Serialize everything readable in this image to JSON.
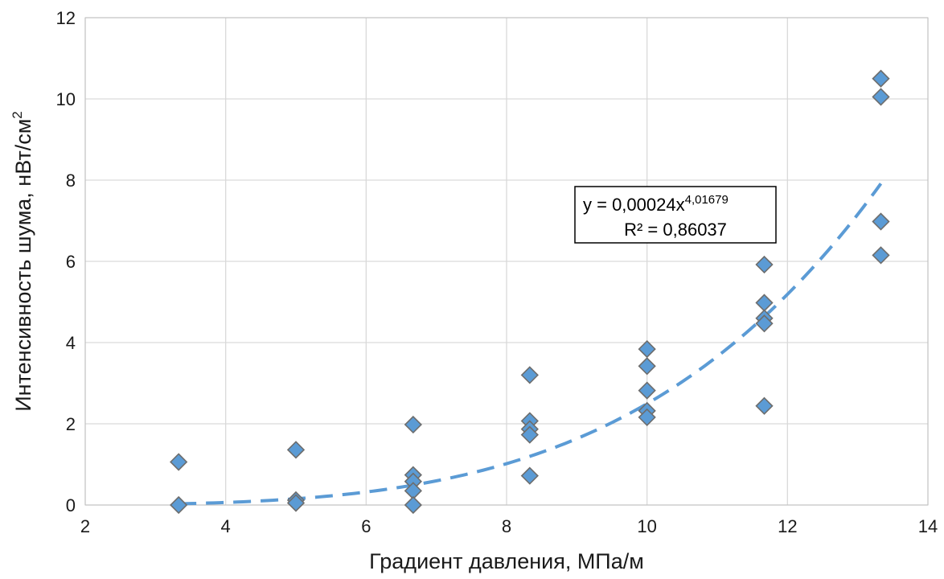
{
  "chart_data": {
    "type": "scatter",
    "xlabel": "Градиент давления, МПа/м",
    "ylabel": "Интенсивность шума, нВт/см",
    "ylabel_sup": "2",
    "xlim": [
      2,
      14
    ],
    "ylim": [
      0,
      12
    ],
    "xticks": [
      "2",
      "4",
      "6",
      "8",
      "10",
      "12",
      "14"
    ],
    "yticks": [
      "0",
      "2",
      "4",
      "6",
      "8",
      "10",
      "12"
    ],
    "grid": true,
    "marker": "diamond",
    "marker_color": "#5b9bd5",
    "series": [
      {
        "points": [
          [
            3.33,
            1.06
          ],
          [
            3.33,
            0.0
          ],
          [
            5.0,
            1.36
          ],
          [
            5.0,
            0.12
          ],
          [
            5.0,
            0.05
          ],
          [
            6.67,
            1.98
          ],
          [
            6.67,
            0.74
          ],
          [
            6.67,
            0.58
          ],
          [
            6.67,
            0.35
          ],
          [
            6.67,
            0.0
          ],
          [
            8.33,
            3.2
          ],
          [
            8.33,
            2.07
          ],
          [
            8.33,
            1.87
          ],
          [
            8.33,
            1.73
          ],
          [
            8.33,
            0.72
          ],
          [
            10.0,
            3.84
          ],
          [
            10.0,
            3.42
          ],
          [
            10.0,
            2.82
          ],
          [
            10.0,
            2.32
          ],
          [
            10.0,
            2.16
          ],
          [
            11.67,
            5.92
          ],
          [
            11.67,
            4.98
          ],
          [
            11.67,
            4.6
          ],
          [
            11.67,
            4.47
          ],
          [
            11.67,
            2.44
          ],
          [
            13.33,
            10.5
          ],
          [
            13.33,
            10.05
          ],
          [
            13.33,
            6.98
          ],
          [
            13.33,
            6.15
          ]
        ]
      }
    ],
    "trendline": {
      "type": "power",
      "coefficient": 0.00024,
      "exponent": 4.01679,
      "x_range": [
        3.33,
        13.33
      ],
      "color": "#5b9bd5",
      "style": "dashed"
    },
    "annotation": {
      "line1": "y = 0,00024x",
      "line1_sup": "4,01679",
      "line2": "R² = 0,86037"
    }
  }
}
